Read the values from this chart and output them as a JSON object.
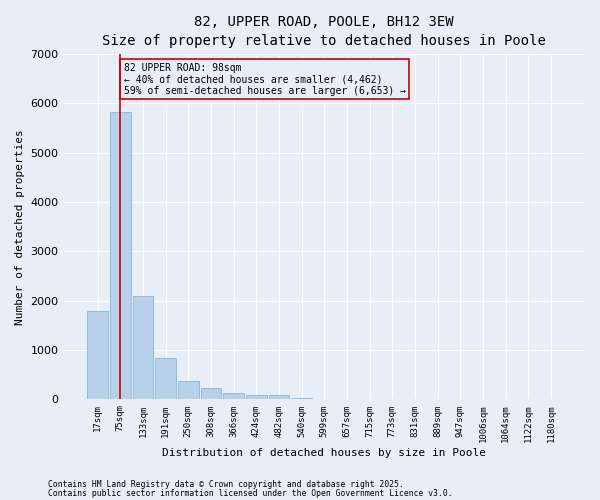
{
  "title1": "82, UPPER ROAD, POOLE, BH12 3EW",
  "title2": "Size of property relative to detached houses in Poole",
  "xlabel": "Distribution of detached houses by size in Poole",
  "ylabel": "Number of detached properties",
  "categories": [
    "17sqm",
    "75sqm",
    "133sqm",
    "191sqm",
    "250sqm",
    "308sqm",
    "366sqm",
    "424sqm",
    "482sqm",
    "540sqm",
    "599sqm",
    "657sqm",
    "715sqm",
    "773sqm",
    "831sqm",
    "889sqm",
    "947sqm",
    "1006sqm",
    "1064sqm",
    "1122sqm",
    "1180sqm"
  ],
  "values": [
    1800,
    5820,
    2100,
    830,
    370,
    230,
    130,
    90,
    90,
    30,
    0,
    0,
    0,
    0,
    0,
    0,
    0,
    0,
    0,
    0,
    0
  ],
  "bar_color": "#b8d0ea",
  "bar_edge_color": "#7aadd4",
  "vline_x": 1,
  "vline_color": "#cc0000",
  "ylim": [
    0,
    7000
  ],
  "annotation_text": "82 UPPER ROAD: 98sqm\n← 40% of detached houses are smaller (4,462)\n59% of semi-detached houses are larger (6,653) →",
  "annotation_box_color": "#cc0000",
  "footer1": "Contains HM Land Registry data © Crown copyright and database right 2025.",
  "footer2": "Contains public sector information licensed under the Open Government Licence v3.0.",
  "bg_color": "#e8eef8",
  "grid_color": "#ffffff",
  "title_fontsize": 10,
  "subtitle_fontsize": 9,
  "tick_fontsize": 6.5,
  "ylabel_fontsize": 8,
  "xlabel_fontsize": 8,
  "ytick_fontsize": 8,
  "footer_fontsize": 5.8,
  "annot_fontsize": 7
}
